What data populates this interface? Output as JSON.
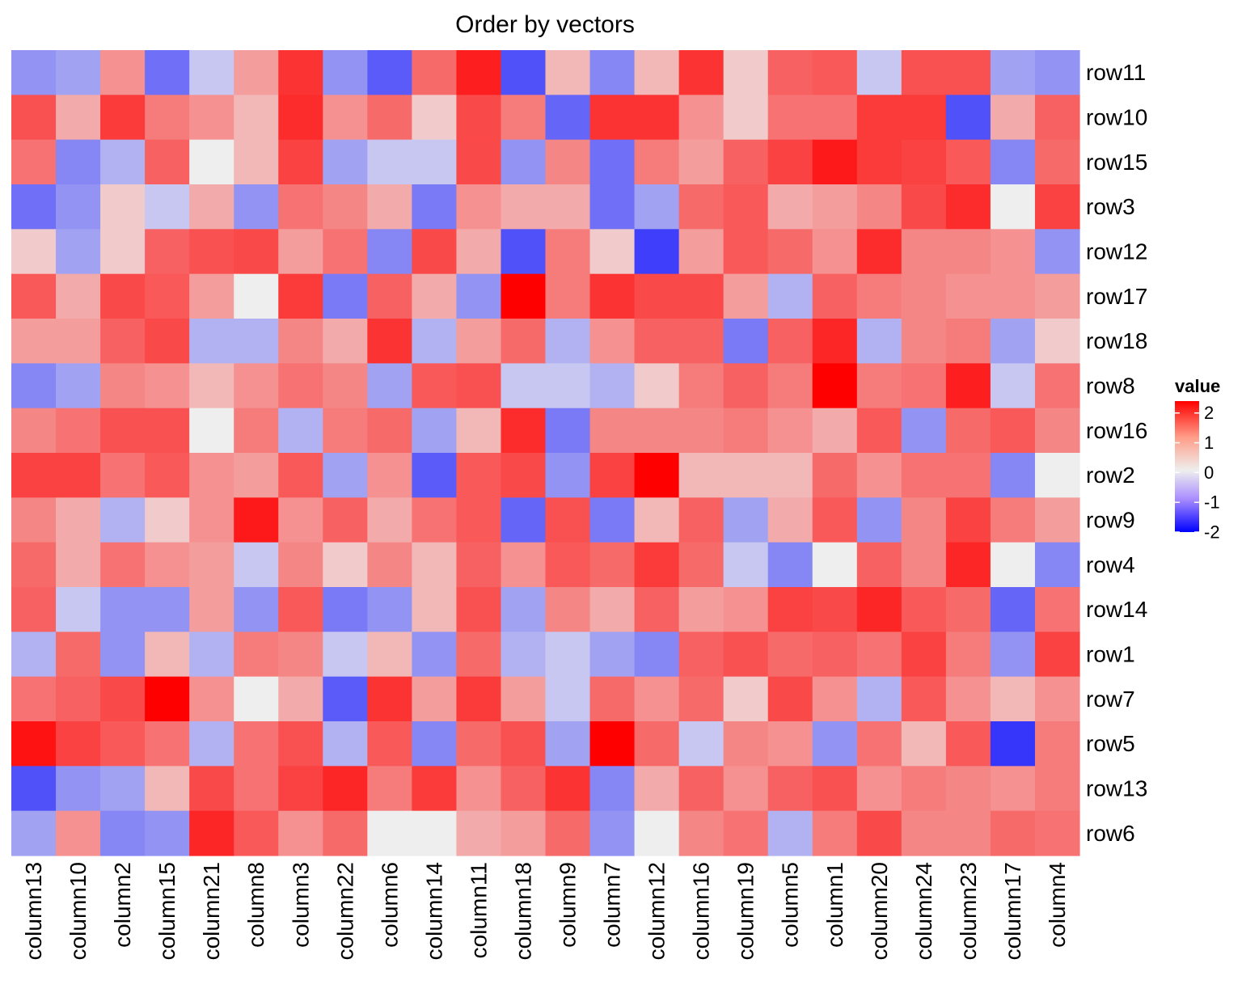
{
  "chart_data": {
    "type": "heatmap",
    "title": "Order by vectors",
    "rows": [
      "row11",
      "row10",
      "row15",
      "row3",
      "row12",
      "row17",
      "row18",
      "row8",
      "row16",
      "row2",
      "row9",
      "row4",
      "row14",
      "row1",
      "row7",
      "row5",
      "row13",
      "row6"
    ],
    "columns": [
      "column13",
      "column10",
      "column2",
      "column15",
      "column21",
      "column8",
      "column3",
      "column22",
      "column6",
      "column14",
      "column11",
      "column18",
      "column9",
      "column7",
      "column12",
      "column16",
      "column19",
      "column5",
      "column1",
      "column20",
      "column24",
      "column23",
      "column17",
      "column4"
    ],
    "values": [
      [
        -0.4,
        -0.3,
        0.5,
        -0.7,
        -0.1,
        0.4,
        1.6,
        -0.4,
        -0.9,
        0.9,
        1.9,
        -1.0,
        0.2,
        -0.5,
        0.2,
        1.6,
        0.1,
        1.0,
        1.1,
        -0.1,
        1.2,
        1.2,
        -0.3,
        -0.4
      ],
      [
        1.2,
        0.3,
        1.5,
        0.7,
        0.5,
        0.2,
        1.7,
        0.5,
        0.9,
        0.1,
        1.3,
        0.7,
        -0.8,
        1.6,
        1.6,
        0.5,
        0.1,
        0.8,
        0.8,
        1.5,
        1.5,
        -1.0,
        0.3,
        1.0
      ],
      [
        0.8,
        -0.5,
        -0.2,
        1.0,
        0.0,
        0.2,
        1.4,
        -0.3,
        -0.1,
        -0.1,
        1.3,
        -0.4,
        0.6,
        -0.7,
        0.7,
        0.4,
        1.0,
        1.4,
        2.0,
        1.5,
        1.4,
        1.1,
        -0.5,
        0.9
      ],
      [
        -0.7,
        -0.4,
        0.1,
        -0.1,
        0.3,
        -0.4,
        0.8,
        0.6,
        0.3,
        -0.6,
        0.5,
        0.3,
        0.3,
        -0.7,
        -0.3,
        0.9,
        1.1,
        0.3,
        0.4,
        0.6,
        1.3,
        1.7,
        0.0,
        1.4
      ],
      [
        0.1,
        -0.3,
        0.1,
        1.0,
        1.2,
        1.3,
        0.4,
        0.8,
        -0.5,
        1.3,
        0.3,
        -1.0,
        0.7,
        0.1,
        -1.2,
        0.4,
        1.1,
        0.9,
        0.5,
        1.7,
        0.6,
        0.6,
        0.5,
        -0.4
      ],
      [
        1.1,
        0.3,
        1.3,
        1.1,
        0.4,
        0.0,
        1.5,
        -0.6,
        1.0,
        0.3,
        -0.4,
        2.4,
        0.7,
        1.6,
        1.3,
        1.3,
        0.4,
        -0.2,
        1.0,
        0.7,
        0.6,
        0.5,
        0.5,
        0.4
      ],
      [
        0.4,
        0.4,
        1.0,
        1.3,
        -0.2,
        -0.2,
        0.6,
        0.3,
        1.6,
        -0.2,
        0.4,
        0.9,
        -0.2,
        0.5,
        1.0,
        1.0,
        -0.6,
        1.0,
        1.8,
        -0.2,
        0.6,
        0.7,
        -0.3,
        0.1
      ],
      [
        -0.5,
        -0.3,
        0.6,
        0.5,
        0.2,
        0.5,
        0.8,
        0.6,
        -0.3,
        1.1,
        1.2,
        -0.1,
        -0.1,
        -0.2,
        0.1,
        0.7,
        1.0,
        0.7,
        2.4,
        0.7,
        0.8,
        1.9,
        -0.1,
        0.8
      ],
      [
        0.6,
        0.8,
        1.2,
        1.2,
        0.0,
        0.7,
        -0.2,
        0.7,
        0.9,
        -0.3,
        0.2,
        1.7,
        -0.6,
        0.6,
        0.6,
        0.6,
        0.7,
        0.5,
        0.3,
        1.1,
        -0.4,
        0.9,
        1.1,
        0.6
      ],
      [
        1.4,
        1.4,
        0.8,
        1.1,
        0.5,
        0.4,
        1.1,
        -0.3,
        0.5,
        -0.9,
        1.1,
        1.3,
        -0.4,
        1.4,
        2.4,
        0.2,
        0.2,
        0.2,
        0.9,
        0.5,
        0.8,
        0.8,
        -0.5,
        0.0
      ],
      [
        0.6,
        0.3,
        -0.2,
        0.1,
        0.5,
        2.0,
        0.5,
        1.0,
        0.3,
        0.8,
        1.1,
        -0.8,
        1.2,
        -0.6,
        0.2,
        1.0,
        -0.3,
        0.3,
        1.1,
        -0.4,
        0.6,
        1.4,
        0.7,
        0.4
      ],
      [
        0.9,
        0.3,
        0.8,
        0.5,
        0.4,
        -0.1,
        0.6,
        0.1,
        0.6,
        0.2,
        1.0,
        0.5,
        1.1,
        0.9,
        1.5,
        0.9,
        -0.1,
        -0.5,
        0.0,
        1.0,
        0.6,
        1.8,
        0.0,
        -0.5
      ],
      [
        1.0,
        -0.1,
        -0.4,
        -0.4,
        0.4,
        -0.4,
        1.1,
        -0.6,
        -0.4,
        0.2,
        1.2,
        -0.3,
        0.6,
        0.3,
        1.0,
        0.4,
        0.5,
        1.4,
        1.3,
        1.8,
        1.1,
        0.9,
        -0.8,
        0.8
      ],
      [
        -0.2,
        0.9,
        -0.4,
        0.2,
        -0.2,
        0.7,
        0.6,
        -0.1,
        0.2,
        -0.4,
        0.9,
        -0.2,
        -0.1,
        -0.3,
        -0.5,
        1.0,
        1.2,
        0.9,
        1.0,
        0.8,
        1.4,
        0.7,
        -0.4,
        1.4
      ],
      [
        0.8,
        1.0,
        1.3,
        2.4,
        0.5,
        0.0,
        0.3,
        -0.9,
        1.6,
        0.4,
        1.5,
        0.4,
        -0.1,
        0.9,
        0.5,
        0.9,
        0.1,
        1.3,
        0.5,
        -0.2,
        1.1,
        0.5,
        0.2,
        0.5
      ],
      [
        2.1,
        1.4,
        1.1,
        0.8,
        -0.2,
        0.8,
        1.2,
        -0.2,
        1.1,
        -0.5,
        0.9,
        1.2,
        -0.3,
        2.4,
        0.9,
        -0.1,
        0.6,
        0.5,
        -0.4,
        0.8,
        0.2,
        1.1,
        -1.3,
        0.7
      ],
      [
        -1.0,
        -0.4,
        -0.3,
        0.2,
        1.3,
        0.8,
        1.4,
        1.8,
        0.7,
        1.5,
        0.5,
        1.0,
        1.6,
        -0.5,
        0.3,
        1.0,
        0.5,
        1.0,
        1.2,
        0.5,
        0.7,
        0.6,
        0.5,
        0.7
      ],
      [
        -0.3,
        0.5,
        -0.5,
        -0.4,
        1.8,
        1.1,
        0.5,
        0.9,
        0.0,
        0.0,
        0.3,
        0.4,
        0.9,
        -0.4,
        0.0,
        0.6,
        0.8,
        -0.2,
        0.7,
        1.3,
        0.6,
        0.6,
        0.9,
        0.8
      ]
    ],
    "legend": {
      "title": "value",
      "ticks": [
        2,
        1,
        0,
        -1,
        -2
      ],
      "tick_labels": [
        "2",
        "1",
        "0",
        "-1",
        "-2"
      ],
      "range": [
        -2,
        2.4
      ],
      "colors": {
        "low": "#0000ff",
        "mid": "#eeeeee",
        "high": "#ff0000"
      },
      "placement": "right"
    },
    "xlabel": "",
    "ylabel": "",
    "grid": false
  }
}
